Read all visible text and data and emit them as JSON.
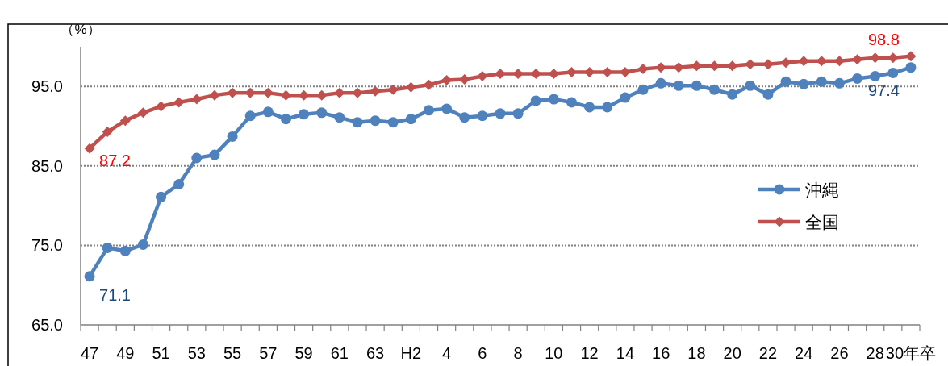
{
  "chart_data": {
    "type": "line",
    "ylabel": "（%）",
    "categories": [
      "47",
      null,
      "49",
      null,
      "51",
      null,
      "53",
      null,
      "55",
      null,
      "57",
      null,
      "59",
      null,
      "61",
      null,
      "63",
      null,
      "H2",
      null,
      "4",
      null,
      "6",
      null,
      "8",
      null,
      "10",
      null,
      "12",
      null,
      "14",
      null,
      "16",
      null,
      "18",
      null,
      "20",
      null,
      "22",
      null,
      "24",
      null,
      "26",
      null,
      "28",
      null,
      "30年卒"
    ],
    "series": [
      {
        "name": "沖縄",
        "color": "#4f81bd",
        "marker": "circle",
        "values": [
          71.1,
          74.7,
          74.3,
          75.1,
          81.1,
          82.7,
          86.0,
          86.4,
          88.7,
          91.3,
          91.8,
          90.9,
          91.5,
          91.7,
          91.1,
          90.5,
          90.7,
          90.5,
          90.9,
          92.0,
          92.2,
          91.1,
          91.3,
          91.6,
          91.6,
          93.2,
          93.4,
          93.0,
          92.4,
          92.4,
          93.6,
          94.6,
          95.4,
          95.1,
          95.1,
          94.6,
          94.0,
          95.1,
          94.0,
          95.6,
          95.3,
          95.6,
          95.4,
          96.0,
          96.3,
          96.7,
          97.4
        ],
        "value_labels": [
          "71.1",
          null,
          null,
          null,
          null,
          null,
          null,
          null,
          null,
          null,
          null,
          null,
          null,
          null,
          null,
          null,
          null,
          null,
          null,
          null,
          null,
          null,
          null,
          null,
          null,
          null,
          null,
          null,
          null,
          null,
          null,
          null,
          null,
          null,
          null,
          null,
          null,
          null,
          null,
          null,
          null,
          null,
          null,
          null,
          null,
          null,
          "97.4"
        ]
      },
      {
        "name": "全国",
        "color": "#c0504d",
        "marker": "diamond",
        "values": [
          87.2,
          89.3,
          90.7,
          91.7,
          92.5,
          93.0,
          93.4,
          93.9,
          94.2,
          94.2,
          94.2,
          93.9,
          93.9,
          93.9,
          94.2,
          94.2,
          94.4,
          94.6,
          94.9,
          95.2,
          95.8,
          95.9,
          96.3,
          96.6,
          96.6,
          96.6,
          96.6,
          96.8,
          96.8,
          96.8,
          96.8,
          97.2,
          97.4,
          97.4,
          97.6,
          97.6,
          97.6,
          97.8,
          97.8,
          98.0,
          98.2,
          98.2,
          98.2,
          98.4,
          98.6,
          98.6,
          98.8
        ],
        "value_labels": [
          "87.2",
          null,
          null,
          null,
          null,
          null,
          null,
          null,
          null,
          null,
          null,
          null,
          null,
          null,
          null,
          null,
          null,
          null,
          null,
          null,
          null,
          null,
          null,
          null,
          null,
          null,
          null,
          null,
          null,
          null,
          null,
          null,
          null,
          null,
          null,
          null,
          null,
          null,
          null,
          null,
          null,
          null,
          null,
          null,
          null,
          null,
          "98.8"
        ]
      }
    ],
    "ylim": [
      65,
      100
    ],
    "yticks": [
      {
        "value": 65,
        "label": "65.0"
      },
      {
        "value": 75,
        "label": "75.0"
      },
      {
        "value": 85,
        "label": "85.0"
      },
      {
        "value": 95,
        "label": "95.0"
      }
    ],
    "grid": "y",
    "legend": "right",
    "line_style": "solid"
  }
}
